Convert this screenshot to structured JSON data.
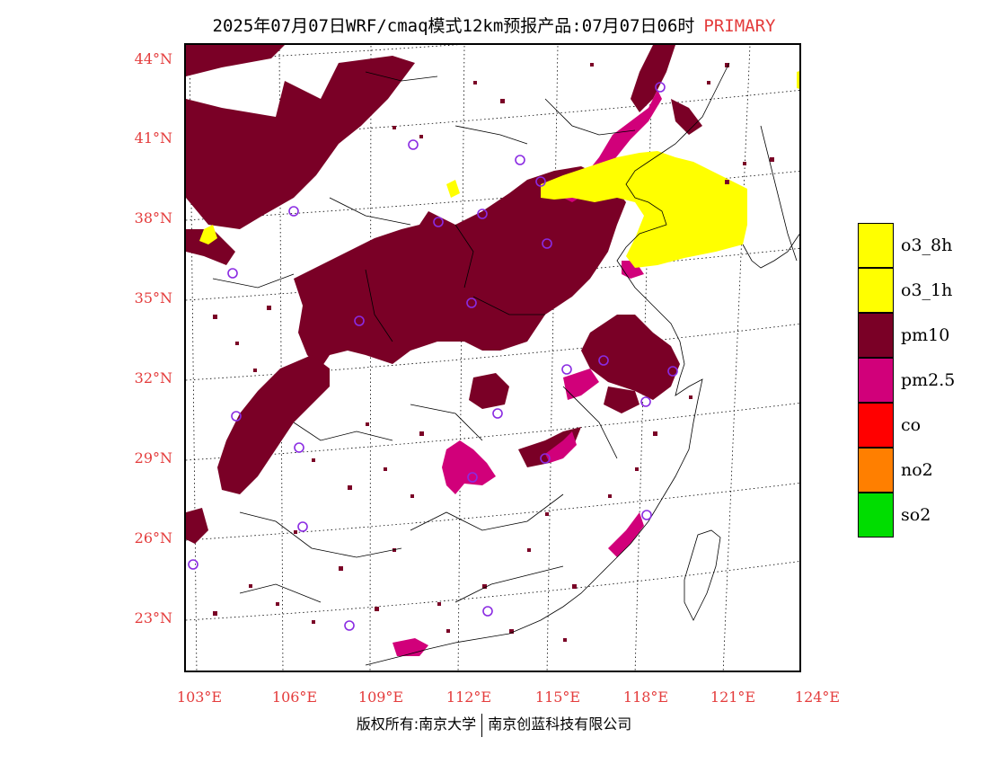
{
  "title": {
    "main": "2025年07月07日WRF/cmaq模式12km预报产品:07月07日06时",
    "tag": "PRIMARY"
  },
  "axes": {
    "lat_labels": [
      "44°N",
      "41°N",
      "38°N",
      "35°N",
      "32°N",
      "29°N",
      "26°N",
      "23°N"
    ],
    "lon_labels": [
      "103°E",
      "106°E",
      "109°E",
      "112°E",
      "115°E",
      "118°E",
      "121°E",
      "124°E"
    ]
  },
  "legend": {
    "items": [
      {
        "label": "o3_8h",
        "color": "#ffff00"
      },
      {
        "label": "o3_1h",
        "color": "#ffff00"
      },
      {
        "label": "pm10",
        "color": "#7a0026"
      },
      {
        "label": "pm2.5",
        "color": "#d1007a"
      },
      {
        "label": "co",
        "color": "#ff0000"
      },
      {
        "label": "no2",
        "color": "#ff7f00"
      },
      {
        "label": "so2",
        "color": "#00dd00"
      }
    ]
  },
  "credit": {
    "left": "版权所有:南京大学",
    "right": "南京创蓝科技有限公司"
  },
  "colors": {
    "axis_label": "#e43c3c",
    "pm10": "#7a0026",
    "pm25": "#d1007a",
    "o3": "#ffff00",
    "station": "#8a2be2"
  }
}
